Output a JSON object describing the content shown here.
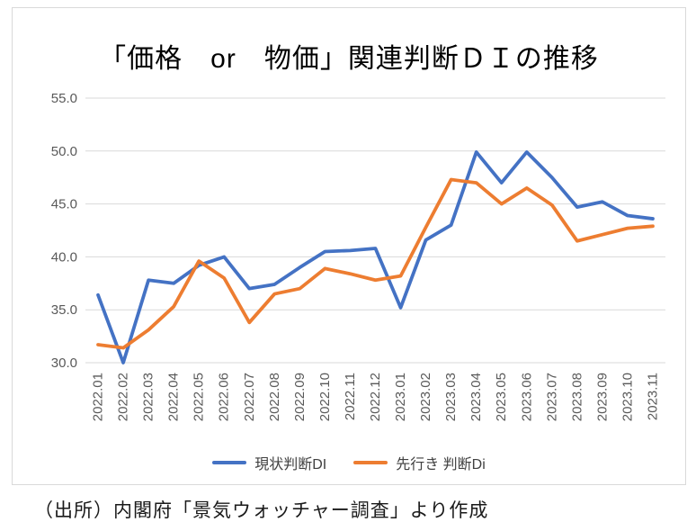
{
  "source_note": "（出所）内閣府「景気ウォッチャー調査」より作成",
  "chart_data": {
    "type": "line",
    "title": "「価格　or　物価」関連判断ＤＩの推移",
    "categories": [
      "2022.01",
      "2022.02",
      "2022.03",
      "2022.04",
      "2022.05",
      "2022.06",
      "2022.07",
      "2022.08",
      "2022.09",
      "2022.10",
      "2022.11",
      "2022.12",
      "2023.01",
      "2023.02",
      "2023.03",
      "2023.04",
      "2023.05",
      "2023.06",
      "2023.07",
      "2023.08",
      "2023.09",
      "2023.10",
      "2023.11"
    ],
    "series": [
      {
        "name": "現状判断DI",
        "color": "#4472C4",
        "values": [
          36.4,
          30.0,
          37.8,
          37.5,
          39.2,
          40.0,
          37.0,
          37.4,
          39.0,
          40.5,
          40.6,
          40.8,
          35.2,
          41.6,
          43.0,
          49.9,
          47.0,
          49.9,
          47.5,
          44.7,
          45.2,
          43.9,
          43.6
        ]
      },
      {
        "name": "先行き 判断Di",
        "color": "#ED7D31",
        "values": [
          31.7,
          31.4,
          33.1,
          35.3,
          39.6,
          38.0,
          33.8,
          36.5,
          37.0,
          38.9,
          38.4,
          37.8,
          38.2,
          42.8,
          47.3,
          47.0,
          45.0,
          46.5,
          44.9,
          41.5,
          42.1,
          42.7,
          42.9
        ]
      }
    ],
    "ylim": [
      30,
      55
    ],
    "yticks": [
      55,
      50,
      45,
      40,
      35,
      30
    ],
    "ytick_labels": [
      "55.0",
      "50.0",
      "45.0",
      "40.0",
      "35.0",
      "30.0"
    ],
    "xlabel": "",
    "ylabel": "",
    "grid": true,
    "legend_position": "bottom",
    "grid_color": "#d9d9d9",
    "tick_label_color": "#595959"
  }
}
